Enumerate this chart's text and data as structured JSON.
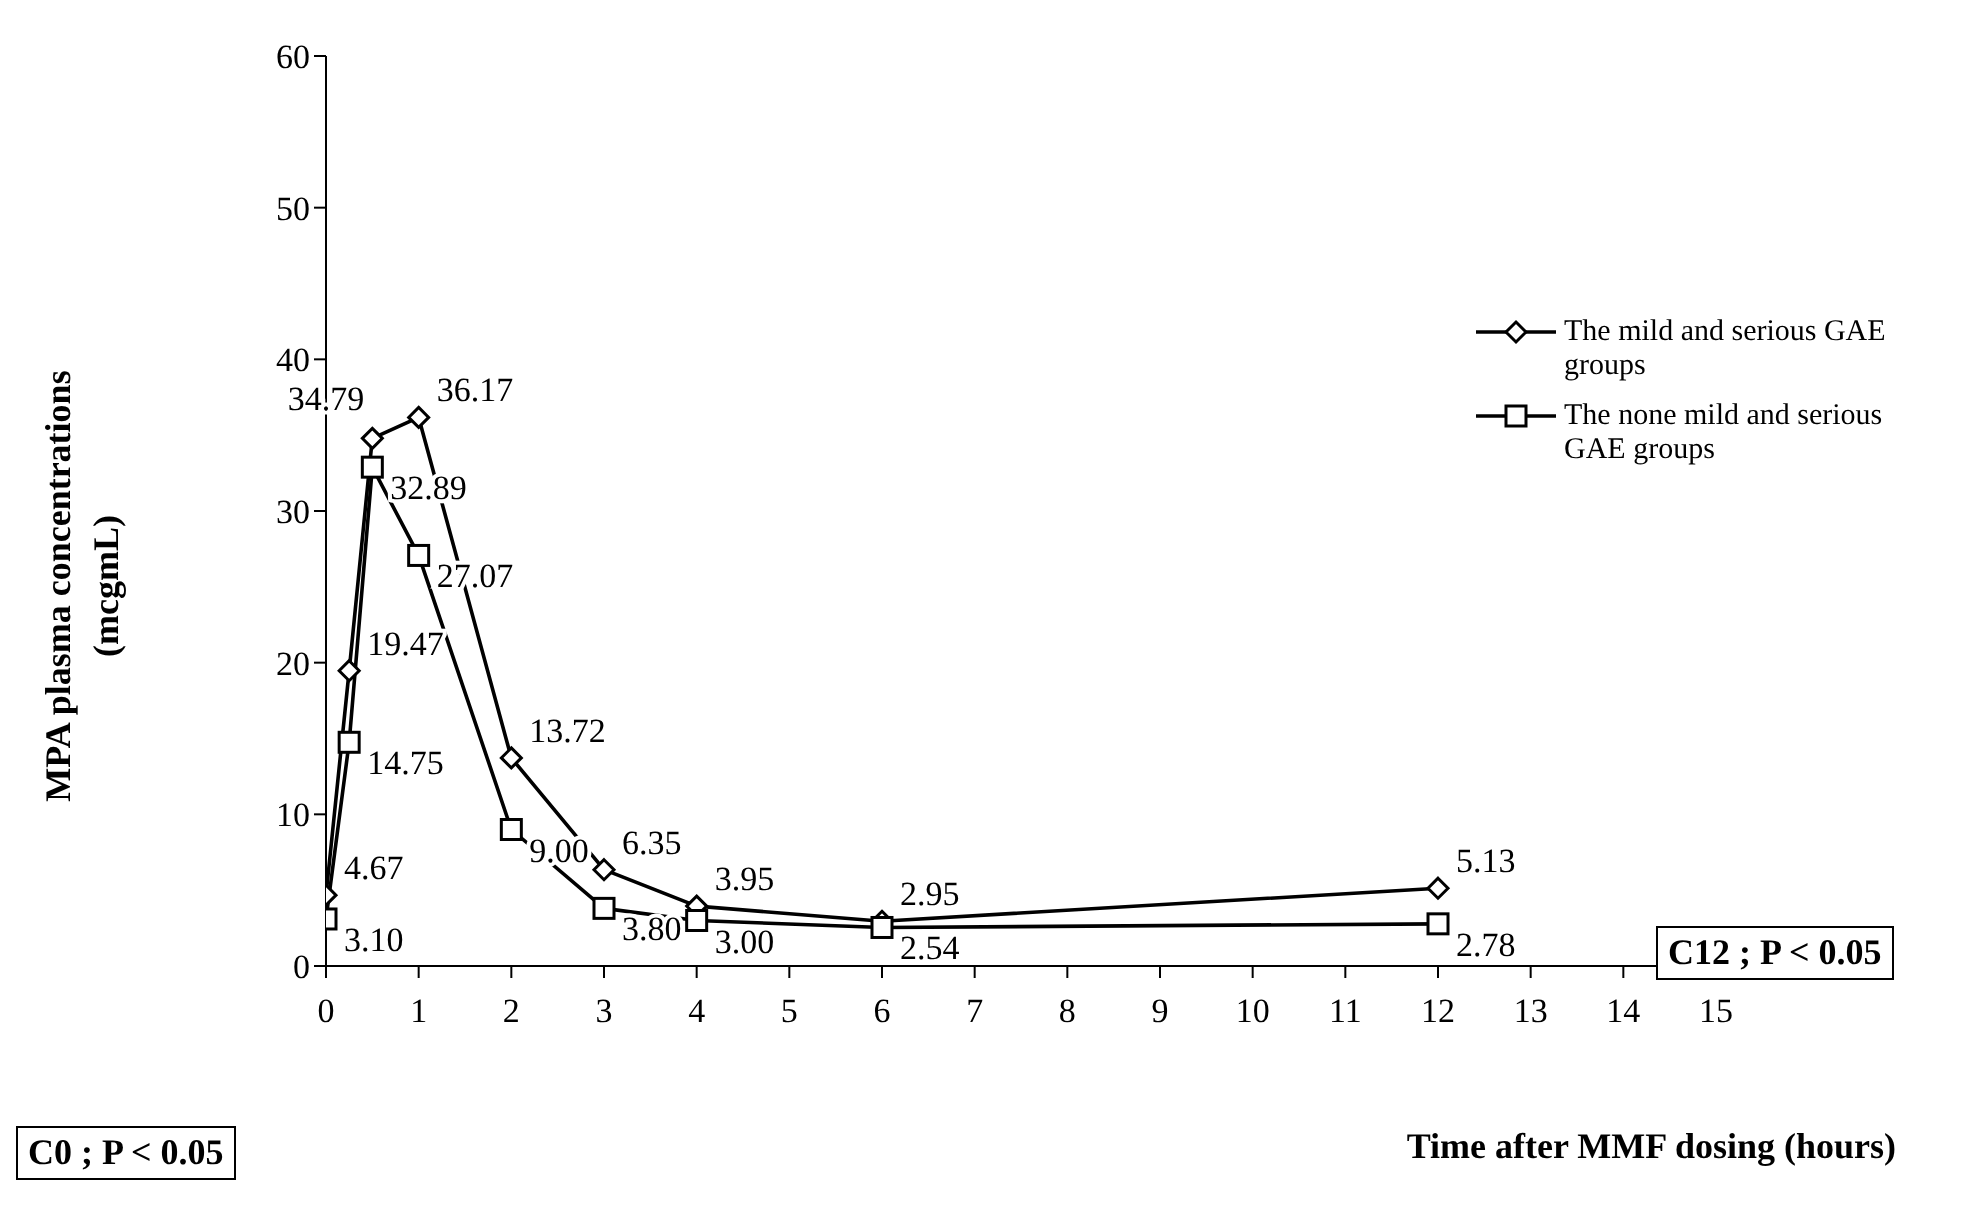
{
  "chart_data": {
    "type": "line",
    "xlabel": "Time after MMF dosing (hours)",
    "ylabel": "MPA plasma concentrations\n(mcgmL)",
    "x": [
      0,
      0.25,
      0.5,
      1,
      2,
      3,
      4,
      6,
      12
    ],
    "series": [
      {
        "name": "The mild and serious GAE groups",
        "color": "#000000",
        "marker": "diamond",
        "values": [
          4.67,
          19.47,
          34.79,
          36.17,
          13.72,
          6.35,
          3.95,
          2.95,
          5.13
        ],
        "value_labels": [
          "4.67",
          "19.47",
          "34.79",
          "36.17",
          "13.72",
          "6.35",
          "3.95",
          "2.95",
          "5.13"
        ]
      },
      {
        "name": "The none mild and serious GAE groups",
        "color": "#000000",
        "marker": "square",
        "values": [
          3.1,
          14.75,
          32.89,
          27.07,
          9.0,
          3.8,
          3.0,
          2.54,
          2.78
        ],
        "value_labels": [
          "3.10",
          "14.75",
          "32.89",
          "27.07",
          "9.00",
          "3.80",
          "3.00",
          "2.54",
          "2.78"
        ]
      }
    ],
    "xlim": [
      0,
      15
    ],
    "xticks": [
      0,
      1,
      2,
      3,
      4,
      5,
      6,
      7,
      8,
      9,
      10,
      11,
      12,
      13,
      14,
      15
    ],
    "ylim": [
      0,
      60
    ],
    "yticks": [
      0,
      10,
      20,
      30,
      40,
      50,
      60
    ],
    "grid": false,
    "legend": "right",
    "line_style": "solid",
    "annotations": [
      "C0 ; P < 0.05",
      "C12 ; P < 0.05"
    ]
  }
}
